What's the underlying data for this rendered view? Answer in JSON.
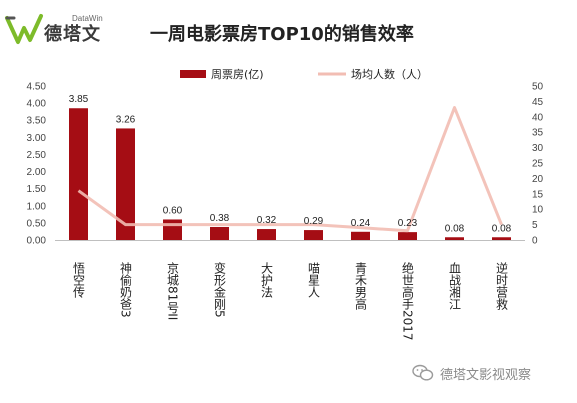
{
  "header": {
    "logo_cn": "德塔文",
    "logo_en": "DataWin",
    "title": "一周电影票房TOP10的销售效率"
  },
  "watermark": {
    "text": "德塔文影视观察",
    "icon": "wechat-icon"
  },
  "colors": {
    "bar": "#a50d14",
    "line": "#f2bdb3",
    "logo_green": "#7dbb2a",
    "logo_gray": "#555555"
  },
  "chart_data": {
    "type": "bar",
    "title": "一周电影票房TOP10的销售效率",
    "categories": [
      "悟空传",
      "神偷奶爸3",
      "京城81号II",
      "变形金刚5",
      "大护法",
      "喵星人",
      "青禾男高",
      "绝世高手2017",
      "血战湘江",
      "逆时营救"
    ],
    "legend_position": "top",
    "grid": false,
    "series": [
      {
        "name": "周票房(亿)",
        "type": "bar",
        "axis": "left",
        "values": [
          3.85,
          3.26,
          0.6,
          0.38,
          0.32,
          0.29,
          0.24,
          0.23,
          0.08,
          0.08
        ],
        "labels": [
          "3.85",
          "3.26",
          "0.60",
          "0.38",
          "0.32",
          "0.29",
          "0.24",
          "0.23",
          "0.08",
          "0.08"
        ]
      },
      {
        "name": "场均人数（人）",
        "type": "line",
        "axis": "right",
        "values": [
          16,
          5,
          5,
          5,
          5,
          5,
          4,
          3,
          43,
          5
        ]
      }
    ],
    "y_left": {
      "min": 0,
      "max": 4.5,
      "step": 0.5,
      "ticks": [
        "0.00",
        "0.50",
        "1.00",
        "1.50",
        "2.00",
        "2.50",
        "3.00",
        "3.50",
        "4.00",
        "4.50"
      ]
    },
    "y_right": {
      "min": 0,
      "max": 50,
      "step": 5,
      "ticks": [
        "0",
        "5",
        "10",
        "15",
        "20",
        "25",
        "30",
        "35",
        "40",
        "45",
        "50"
      ]
    }
  }
}
